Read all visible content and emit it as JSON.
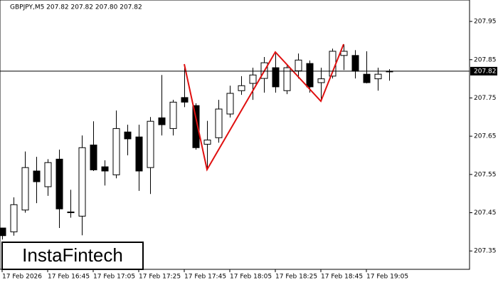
{
  "chart_data": {
    "type": "candlestick",
    "title": "GBPJPY,M5  207.82 207.82 207.80 207.82",
    "watermark": "InstaFintech",
    "x": [
      "17 Feb 2026",
      null,
      null,
      null,
      "17 Feb 16:45",
      null,
      null,
      null,
      "17 Feb 17:05",
      null,
      null,
      null,
      "17 Feb 17:25",
      null,
      null,
      null,
      "17 Feb 17:45",
      null,
      null,
      null,
      "17 Feb 18:05",
      null,
      null,
      null,
      "17 Feb 18:25",
      null,
      null,
      null,
      "17 Feb 18:45",
      null,
      null,
      null,
      "17 Feb 19:05",
      null,
      null
    ],
    "open": [
      207.41,
      207.4,
      207.457,
      207.559,
      207.518,
      207.59,
      207.452,
      207.441,
      207.627,
      207.57,
      207.549,
      207.661,
      207.648,
      207.568,
      207.698,
      207.67,
      207.751,
      207.73,
      207.629,
      207.646,
      207.708,
      207.769,
      207.788,
      207.801,
      207.829,
      207.769,
      207.821,
      207.84,
      207.79,
      207.807,
      207.861,
      207.861,
      207.812,
      207.8,
      207.82
    ],
    "high": [
      207.41,
      207.49,
      207.61,
      207.596,
      207.59,
      207.615,
      207.51,
      207.652,
      207.689,
      207.587,
      207.717,
      207.68,
      207.68,
      207.7,
      207.81,
      207.745,
      207.838,
      207.736,
      207.69,
      207.745,
      207.782,
      207.807,
      207.829,
      207.857,
      207.866,
      207.838,
      207.866,
      207.848,
      207.829,
      207.879,
      207.89,
      207.875,
      207.872,
      207.829,
      207.825
    ],
    "low": [
      207.38,
      207.39,
      207.45,
      207.475,
      207.494,
      207.41,
      207.437,
      207.391,
      207.559,
      207.521,
      207.54,
      207.6,
      207.507,
      207.499,
      207.652,
      207.652,
      207.726,
      207.615,
      207.562,
      207.633,
      207.699,
      207.758,
      207.745,
      207.764,
      207.764,
      207.76,
      207.801,
      207.764,
      207.741,
      207.801,
      207.823,
      207.801,
      207.788,
      207.769,
      207.795
    ],
    "close": [
      207.39,
      207.471,
      207.568,
      207.531,
      207.581,
      207.46,
      207.45,
      207.62,
      207.562,
      207.559,
      207.67,
      207.643,
      207.559,
      207.689,
      207.68,
      207.739,
      207.739,
      207.62,
      207.64,
      207.721,
      207.762,
      207.782,
      207.81,
      207.842,
      207.779,
      207.829,
      207.849,
      207.779,
      207.8,
      207.872,
      207.872,
      207.82,
      207.79,
      207.812,
      207.82
    ],
    "last_price": 207.82,
    "ylim": [
      207.302,
      208.006
    ],
    "yticks": [
      207.35,
      207.45,
      207.55,
      207.65,
      207.75,
      207.85,
      207.95
    ]
  }
}
